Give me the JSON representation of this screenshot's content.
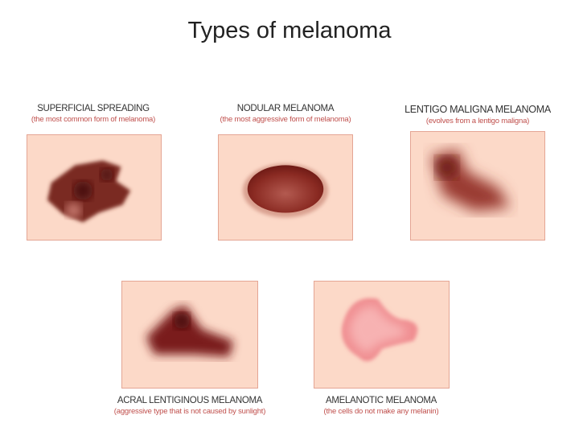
{
  "title": "Types of melanoma",
  "types": [
    {
      "name": "SUPERFICIAL SPREADING",
      "description": "(the most common form of melanoma)"
    },
    {
      "name": "NODULAR MELANOMA",
      "description": "(the most aggressive form of melanoma)"
    },
    {
      "name": "LENTIGO MALIGNA MELANOMA",
      "description": "(evolves from a lentigo maligna)"
    },
    {
      "name": "ACRAL LENTIGINOUS MELANOMA",
      "description": "(aggressive type that is not caused by sunlight)"
    },
    {
      "name": "AMELANOTIC MELANOMA",
      "description": "(the cells do not make any melanin)"
    }
  ],
  "colors": {
    "skin": "#fcd9c8",
    "border": "#e4a594",
    "lesion_dark": "#7a1f1a",
    "lesion_pink": "#f4a3a3",
    "subtitle": "#c0504d"
  }
}
